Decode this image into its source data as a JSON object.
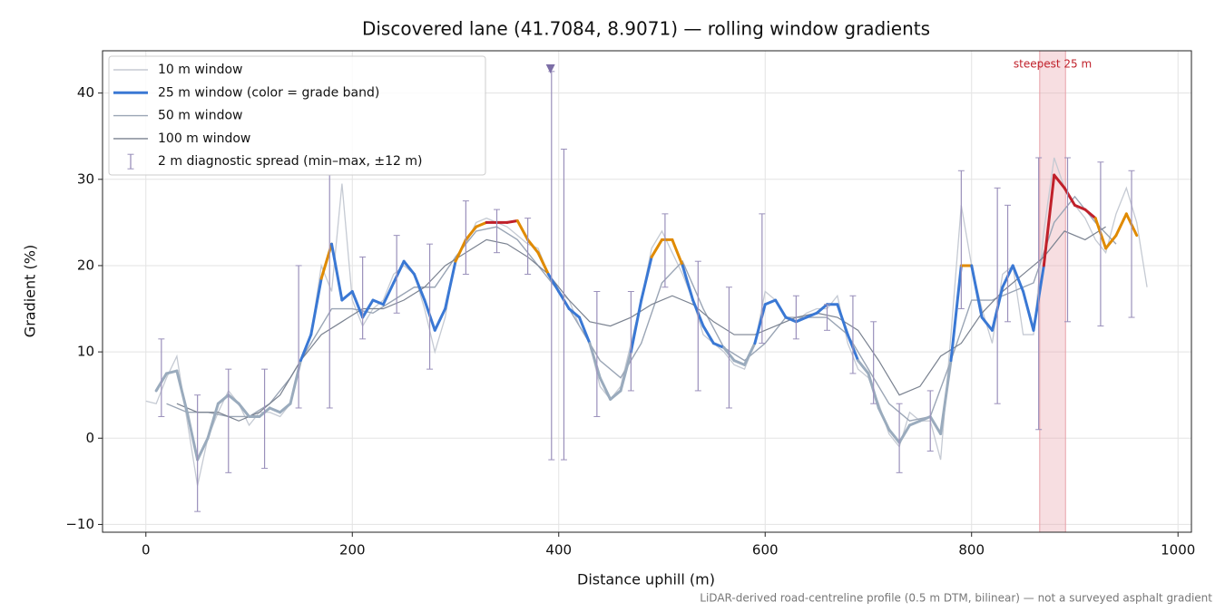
{
  "chart_data": {
    "type": "line",
    "title": "Discovered lane (41.7084, 8.9071) — rolling window gradients",
    "x_label": "Distance uphill (m)",
    "y_label": "Gradient (%)",
    "footnote": "LiDAR-derived road-centreline profile (0.5 m DTM, bilinear) — not a surveyed asphalt gradient",
    "xlim": [
      -42,
      1013
    ],
    "ylim": [
      -10.9,
      44.9
    ],
    "xticks": [
      0,
      200,
      400,
      600,
      800,
      1000
    ],
    "yticks": [
      {
        "value": -10,
        "label": "−10"
      },
      0,
      10,
      20,
      30,
      40
    ],
    "grid": true,
    "legend": "upper left",
    "grade_band_edges": [
      10,
      20,
      25
    ],
    "grade_band_colors": [
      "#9aabbd",
      "#3a78d4",
      "#e08a00",
      "#c0202a"
    ],
    "series": [
      {
        "name": "10 m window",
        "kind": "line",
        "color": "#c5cad3",
        "x": [
          0,
          10,
          20,
          30,
          40,
          50,
          60,
          70,
          80,
          90,
          100,
          110,
          120,
          130,
          140,
          150,
          160,
          170,
          180,
          190,
          200,
          210,
          220,
          230,
          240,
          250,
          260,
          270,
          280,
          290,
          300,
          310,
          320,
          330,
          340,
          350,
          360,
          370,
          380,
          390,
          400,
          410,
          420,
          430,
          440,
          450,
          460,
          470,
          480,
          490,
          500,
          510,
          520,
          530,
          540,
          550,
          560,
          570,
          580,
          590,
          600,
          610,
          620,
          630,
          640,
          650,
          660,
          670,
          680,
          690,
          700,
          710,
          720,
          730,
          740,
          750,
          760,
          770,
          780,
          790,
          800,
          810,
          820,
          830,
          840,
          850,
          860,
          870,
          880,
          890,
          900,
          910,
          920,
          930,
          940,
          950,
          960,
          970
        ],
        "values": [
          4.3,
          4,
          7,
          9.5,
          2,
          -5.5,
          0,
          3,
          5.5,
          4,
          1.5,
          3,
          3,
          2.5,
          4,
          9,
          12,
          20,
          17,
          29.5,
          16,
          13,
          15,
          16,
          19,
          20,
          19,
          15,
          10,
          14,
          21,
          22.5,
          25,
          25.5,
          25,
          24.5,
          23.5,
          22.5,
          22,
          19,
          17,
          16,
          13,
          11,
          6,
          4.5,
          6,
          11,
          16,
          22,
          24,
          21.5,
          19,
          16,
          12,
          11,
          10,
          8.5,
          8,
          11,
          17,
          16,
          14,
          13.5,
          14.5,
          15,
          15,
          16.5,
          11,
          8,
          7,
          4,
          0.5,
          -1,
          3,
          2,
          2,
          -2.5,
          12,
          27,
          20,
          15,
          11,
          19,
          20,
          12,
          12,
          24,
          32.5,
          29,
          27,
          25.5,
          23,
          21.5,
          26,
          29,
          25,
          17.5
        ]
      },
      {
        "name": "25 m window (color = grade band)",
        "kind": "graded",
        "color": "#3a78d4",
        "x": [
          10,
          20,
          30,
          40,
          50,
          60,
          70,
          80,
          90,
          100,
          110,
          120,
          130,
          140,
          150,
          160,
          170,
          180,
          190,
          200,
          210,
          220,
          230,
          240,
          250,
          260,
          270,
          280,
          290,
          300,
          310,
          320,
          330,
          340,
          350,
          360,
          370,
          380,
          390,
          400,
          410,
          420,
          430,
          440,
          450,
          460,
          470,
          480,
          490,
          500,
          510,
          520,
          530,
          540,
          550,
          560,
          570,
          580,
          590,
          600,
          610,
          620,
          630,
          640,
          650,
          660,
          670,
          680,
          690,
          700,
          710,
          720,
          730,
          740,
          750,
          760,
          770,
          780,
          790,
          800,
          810,
          820,
          830,
          840,
          850,
          860,
          870,
          880,
          890,
          900,
          910,
          920,
          930,
          940,
          950,
          960
        ],
        "values": [
          5.5,
          7.5,
          7.8,
          3,
          -2.5,
          0,
          4,
          5,
          4,
          2.5,
          2.5,
          3.5,
          3,
          4,
          9,
          12,
          18.5,
          22.5,
          16,
          17,
          14,
          16,
          15.5,
          18,
          20.5,
          19,
          16,
          12.5,
          15,
          20.5,
          23,
          24.5,
          25,
          25,
          25,
          25.2,
          23,
          21.5,
          19,
          17,
          15,
          14,
          11,
          7,
          4.5,
          5.5,
          10,
          16,
          21,
          23,
          23,
          20,
          16,
          13,
          11,
          10.5,
          9,
          8.5,
          11,
          15.5,
          16,
          14,
          13.5,
          14,
          14.5,
          15.5,
          15.5,
          12,
          9,
          7.5,
          3.5,
          1,
          -0.5,
          1.5,
          2,
          2.5,
          0.5,
          9,
          20,
          20,
          14,
          12.5,
          17.5,
          20,
          17,
          12.5,
          20,
          30.5,
          29,
          27,
          26.5,
          25.5,
          22,
          23.5,
          26,
          23.5
        ]
      },
      {
        "name": "50 m window",
        "kind": "line",
        "color": "#9aa5b5",
        "x": [
          20,
          40,
          60,
          80,
          100,
          120,
          140,
          160,
          180,
          200,
          220,
          240,
          260,
          280,
          300,
          320,
          340,
          360,
          380,
          400,
          420,
          440,
          460,
          480,
          500,
          520,
          540,
          560,
          580,
          600,
          620,
          640,
          660,
          680,
          700,
          720,
          740,
          760,
          780,
          800,
          820,
          840,
          860,
          880,
          900,
          920,
          940
        ],
        "values": [
          4,
          3,
          3,
          2.5,
          2.5,
          4,
          7,
          11,
          15,
          15,
          14.5,
          16,
          17.5,
          17.5,
          21,
          24,
          24.5,
          23,
          20,
          17,
          13,
          9,
          7,
          11,
          18,
          20.5,
          15,
          10.5,
          9,
          11,
          14,
          14,
          14,
          12,
          8,
          4,
          2,
          2.5,
          9,
          16,
          16,
          17,
          18,
          25,
          28,
          25,
          22.5
        ]
      },
      {
        "name": "100 m window",
        "kind": "line",
        "color": "#7a8290",
        "x": [
          30,
          50,
          70,
          90,
          110,
          130,
          150,
          170,
          190,
          210,
          230,
          250,
          270,
          290,
          310,
          330,
          350,
          370,
          390,
          410,
          430,
          450,
          470,
          490,
          510,
          530,
          550,
          570,
          590,
          610,
          630,
          650,
          670,
          690,
          710,
          730,
          750,
          770,
          790,
          810,
          830,
          850,
          870,
          890,
          910,
          930
        ],
        "values": [
          4,
          3,
          3,
          2,
          3,
          5,
          9,
          12,
          13.5,
          15,
          15,
          16,
          17.5,
          20,
          21.5,
          23,
          22.5,
          21,
          19,
          16,
          13.5,
          13,
          14,
          15.5,
          16.5,
          15.5,
          13.5,
          12,
          12,
          13,
          14,
          14.5,
          14,
          12.5,
          9,
          5,
          6,
          9.5,
          11,
          14.5,
          17,
          19,
          21,
          24,
          23,
          24.5
        ]
      },
      {
        "name": "2 m diagnostic spread (min–max, ±12 m)",
        "kind": "errorbar",
        "color": "#9a90bb",
        "x": [
          15,
          50,
          80,
          115,
          148,
          178,
          210,
          243,
          275,
          310,
          340,
          370,
          393,
          405,
          437,
          470,
          503,
          535,
          565,
          597,
          630,
          660,
          685,
          705,
          730,
          760,
          790,
          825,
          835,
          865,
          893,
          925,
          955
        ],
        "low": [
          2.5,
          -8.5,
          -4,
          -3.5,
          3.5,
          3.5,
          11.5,
          14.5,
          8,
          19,
          21.5,
          19,
          -2.5,
          -2.5,
          2.5,
          5.5,
          17.5,
          5.5,
          3.5,
          11,
          11.5,
          12.5,
          7.5,
          4,
          -4,
          -1.5,
          15,
          4,
          13.5,
          1,
          13.5,
          13,
          14
        ],
        "high": [
          11.5,
          5,
          8,
          8,
          20,
          30.5,
          21,
          23.5,
          22.5,
          27.5,
          26.5,
          25.5,
          42.5,
          33.5,
          17,
          17,
          26,
          20.5,
          17.5,
          26,
          16.5,
          15.5,
          16.5,
          13.5,
          4,
          5.5,
          31,
          29,
          27,
          32.5,
          32.5,
          32,
          31
        ]
      }
    ],
    "marker": {
      "x": 392,
      "y": 42.8,
      "color": "#7c6ea6"
    },
    "span": [
      866,
      891
    ],
    "span_color": "#e8a0a8",
    "span_label": "steepest 25 m",
    "span_label_color": "#c0202a"
  }
}
